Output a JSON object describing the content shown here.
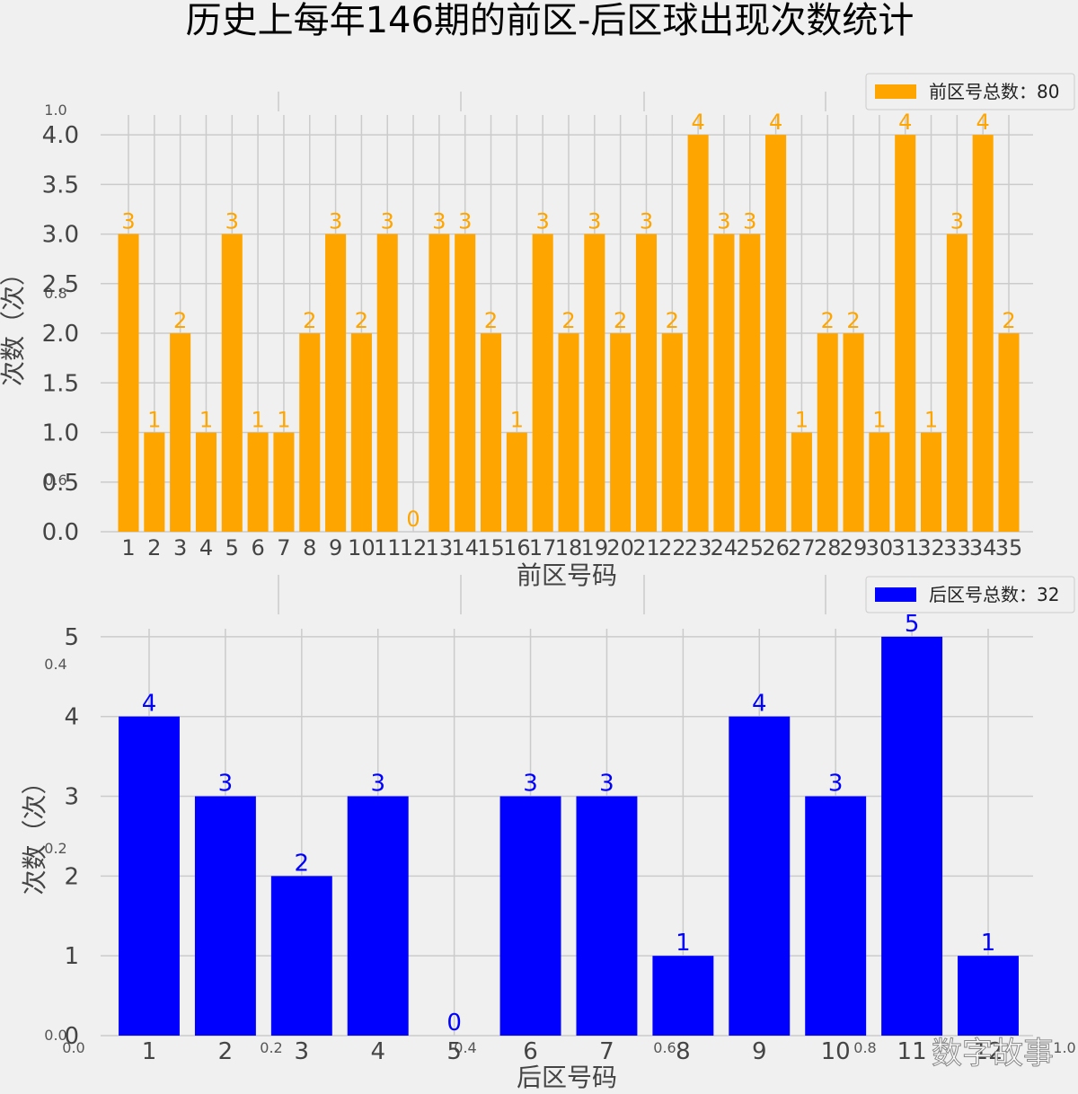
{
  "title": "历史上每年146期的前区-后区球出现次数统计",
  "watermark": "数字故事",
  "colors": {
    "background": "#f0f0f0",
    "grid": "#cbcbcb",
    "front": "#ffa500",
    "back": "#0000ff",
    "text": "#444444"
  },
  "chart_data": [
    {
      "type": "bar",
      "title": "",
      "xlabel": "前区号码",
      "ylabel": "次数（次）",
      "ylim": [
        0,
        4.2
      ],
      "yticks": [
        "0.0",
        "0.5",
        "1.0",
        "1.5",
        "2.0",
        "2.5",
        "3.0",
        "3.5",
        "4.0"
      ],
      "grid": true,
      "legend_position": "top-right",
      "legend_label": "前区号总数：80",
      "color": "#ffa500",
      "categories": [
        "1",
        "2",
        "3",
        "4",
        "5",
        "6",
        "7",
        "8",
        "9",
        "10",
        "11",
        "12",
        "13",
        "14",
        "15",
        "16",
        "17",
        "18",
        "19",
        "20",
        "21",
        "22",
        "23",
        "24",
        "25",
        "26",
        "27",
        "28",
        "29",
        "30",
        "31",
        "32",
        "33",
        "34",
        "35"
      ],
      "values": [
        3,
        1,
        2,
        1,
        3,
        1,
        1,
        2,
        3,
        2,
        3,
        0,
        3,
        3,
        2,
        1,
        3,
        2,
        3,
        2,
        3,
        2,
        4,
        3,
        3,
        4,
        1,
        2,
        2,
        1,
        4,
        1,
        3,
        4,
        2
      ]
    },
    {
      "type": "bar",
      "title": "",
      "xlabel": "后区号码",
      "ylabel": "次数（次）",
      "ylim": [
        0,
        5.1
      ],
      "yticks": [
        "0",
        "1",
        "2",
        "3",
        "4",
        "5"
      ],
      "grid": true,
      "legend_position": "top-right",
      "legend_label": "后区号总数：32",
      "color": "#0000ff",
      "categories": [
        "1",
        "2",
        "3",
        "4",
        "5",
        "6",
        "7",
        "8",
        "9",
        "10",
        "11",
        "12"
      ],
      "values": [
        4,
        3,
        2,
        3,
        0,
        3,
        3,
        1,
        4,
        3,
        5,
        1
      ]
    }
  ],
  "ghost_axis_ticks": {
    "x": [
      "0.0",
      "0.2",
      "0.4",
      "0.6",
      "0.8",
      "1.0"
    ],
    "y": [
      "0.0",
      "0.2",
      "0.4",
      "0.6",
      "0.8",
      "1.0"
    ]
  }
}
